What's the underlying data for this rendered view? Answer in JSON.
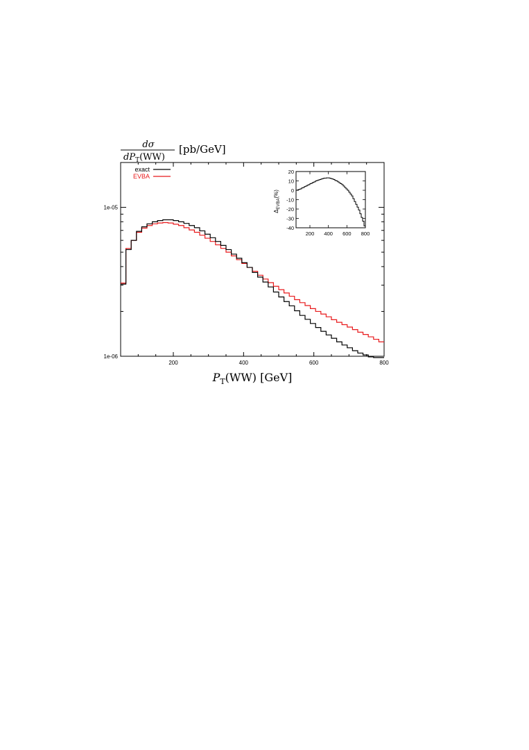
{
  "chart_data": [
    {
      "type": "line",
      "step": true,
      "ylabel": {
        "numerator": "dσ",
        "denominator": "dP",
        "denominator_sub": "T",
        "denominator_suffix": "(WW)",
        "unit": "[pb/GeV]"
      },
      "xlabel": {
        "main": "P",
        "sub": "T",
        "suffix": "(WW) [GeV]"
      },
      "xlim": [
        50,
        800
      ],
      "ylim": [
        1e-06,
        2e-05
      ],
      "yscale": "log",
      "x_ticks": [
        {
          "value": 200,
          "label": "200"
        },
        {
          "value": 400,
          "label": "400"
        },
        {
          "value": 600,
          "label": "600"
        },
        {
          "value": 800,
          "label": "800"
        }
      ],
      "y_ticks": [
        {
          "value": 1e-06,
          "label": "1e-06"
        },
        {
          "value": 1e-05,
          "label": "1e-05"
        }
      ],
      "bin_edges": [
        50,
        65,
        80,
        95,
        110,
        125,
        140,
        155,
        170,
        185,
        200,
        215,
        230,
        245,
        260,
        275,
        290,
        305,
        320,
        335,
        350,
        365,
        380,
        395,
        410,
        425,
        440,
        455,
        470,
        485,
        500,
        515,
        530,
        545,
        560,
        575,
        590,
        605,
        620,
        635,
        650,
        665,
        680,
        695,
        710,
        725,
        740,
        755,
        770,
        785,
        800
      ],
      "legend_position": "top-left",
      "series": [
        {
          "name": "exact",
          "color": "#000000",
          "values": [
            3.05e-06,
            5.2e-06,
            6e-06,
            6.9e-06,
            7.4e-06,
            7.75e-06,
            8e-06,
            8.15e-06,
            8.25e-06,
            8.25e-06,
            8.15e-06,
            8e-06,
            7.8e-06,
            7.55e-06,
            7.3e-06,
            6.95e-06,
            6.6e-06,
            6.25e-06,
            5.9e-06,
            5.55e-06,
            5.2e-06,
            4.85e-06,
            4.55e-06,
            4.25e-06,
            3.95e-06,
            3.65e-06,
            3.4e-06,
            3.15e-06,
            2.92e-06,
            2.7e-06,
            2.5e-06,
            2.33e-06,
            2.18e-06,
            2.02e-06,
            1.88e-06,
            1.77e-06,
            1.66e-06,
            1.56e-06,
            1.47e-06,
            1.39e-06,
            1.32e-06,
            1.25e-06,
            1.19e-06,
            1.14e-06,
            1.09e-06,
            1.05e-06,
            1.02e-06,
            9.9e-07,
            9.7e-07,
            9.5e-07
          ]
        },
        {
          "name": "EVBA",
          "color": "#e8191b",
          "values": [
            3.1e-06,
            5.3e-06,
            6e-06,
            6.8e-06,
            7.25e-06,
            7.55e-06,
            7.75e-06,
            7.85e-06,
            7.9e-06,
            7.85e-06,
            7.7e-06,
            7.55e-06,
            7.3e-06,
            7.05e-06,
            6.8e-06,
            6.5e-06,
            6.2e-06,
            5.9e-06,
            5.6e-06,
            5.3e-06,
            5e-06,
            4.72e-06,
            4.45e-06,
            4.2e-06,
            3.95e-06,
            3.72e-06,
            3.5e-06,
            3.3e-06,
            3.12e-06,
            2.95e-06,
            2.8e-06,
            2.66e-06,
            2.53e-06,
            2.4e-06,
            2.29e-06,
            2.19e-06,
            2.09e-06,
            2e-06,
            1.92e-06,
            1.84e-06,
            1.76e-06,
            1.69e-06,
            1.63e-06,
            1.57e-06,
            1.51e-06,
            1.45e-06,
            1.4e-06,
            1.35e-06,
            1.3e-06,
            1.25e-06
          ]
        }
      ]
    },
    {
      "type": "line",
      "step": true,
      "inset": true,
      "ylabel": {
        "main": "Δ",
        "sub": "EVBA",
        "suffix": "(%)"
      },
      "xlim": [
        50,
        800
      ],
      "ylim": [
        -40,
        20
      ],
      "x_ticks": [
        {
          "value": 200,
          "label": "200"
        },
        {
          "value": 400,
          "label": "400"
        },
        {
          "value": 600,
          "label": "600"
        },
        {
          "value": 800,
          "label": "800"
        }
      ],
      "y_ticks": [
        {
          "value": 20,
          "label": "20"
        },
        {
          "value": 10,
          "label": "10"
        },
        {
          "value": 0,
          "label": "0"
        },
        {
          "value": -10,
          "label": "-10"
        },
        {
          "value": -20,
          "label": "-20"
        },
        {
          "value": -30,
          "label": "-30"
        },
        {
          "value": -40,
          "label": "-40"
        }
      ],
      "bin_edges": [
        50,
        65,
        80,
        95,
        110,
        125,
        140,
        155,
        170,
        185,
        200,
        215,
        230,
        245,
        260,
        275,
        290,
        305,
        320,
        335,
        350,
        365,
        380,
        395,
        410,
        425,
        440,
        455,
        470,
        485,
        500,
        515,
        530,
        545,
        560,
        575,
        590,
        605,
        620,
        635,
        650,
        665,
        680,
        695,
        710,
        725,
        740,
        755,
        770,
        785,
        800
      ],
      "series": [
        {
          "color": "#000000",
          "values": [
            0,
            0.5,
            1,
            1.5,
            2.5,
            3,
            4,
            4.5,
            5.5,
            6,
            7,
            7.5,
            8.5,
            9,
            10,
            10.5,
            11,
            11.5,
            12,
            12.5,
            13,
            13,
            13.2,
            13.2,
            13,
            12.5,
            12,
            11.5,
            10.5,
            10,
            9,
            8,
            7,
            6,
            4.5,
            3,
            1.5,
            0,
            -2,
            -4,
            -6,
            -9,
            -12,
            -15,
            -18,
            -21,
            -25,
            -29,
            -33,
            -38
          ]
        }
      ]
    }
  ]
}
